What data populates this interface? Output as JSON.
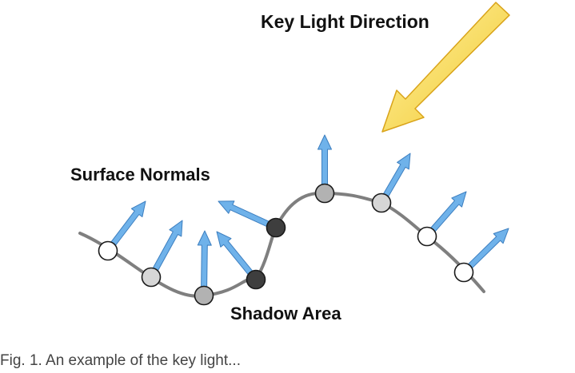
{
  "labels": {
    "key_light": "Key Light Direction",
    "surface_normals": "Surface Normals",
    "shadow_area": "Shadow Area"
  },
  "caption": "Fig. 1. An example of the key light...",
  "colors": {
    "curve": "#7f7f7f",
    "normal_arrow": "#6fb2ea",
    "normal_arrow_stroke": "#3d7fc0",
    "light_arrow": "#f5df5a",
    "light_arrow_stroke": "#d9a319",
    "lit_point": "#ffffff",
    "mid_point": "#d6d6d6",
    "dim_point": "#b2b2b2",
    "shadow_point": "#3e3e3e"
  },
  "sample_points": [
    {
      "id": "p1",
      "shade": "lit"
    },
    {
      "id": "p2",
      "shade": "mid"
    },
    {
      "id": "p3",
      "shade": "dim"
    },
    {
      "id": "p4",
      "shade": "shadow"
    },
    {
      "id": "p5",
      "shade": "shadow"
    },
    {
      "id": "p6",
      "shade": "dim"
    },
    {
      "id": "p7",
      "shade": "mid"
    },
    {
      "id": "p8",
      "shade": "lit"
    },
    {
      "id": "p9",
      "shade": "lit"
    }
  ]
}
